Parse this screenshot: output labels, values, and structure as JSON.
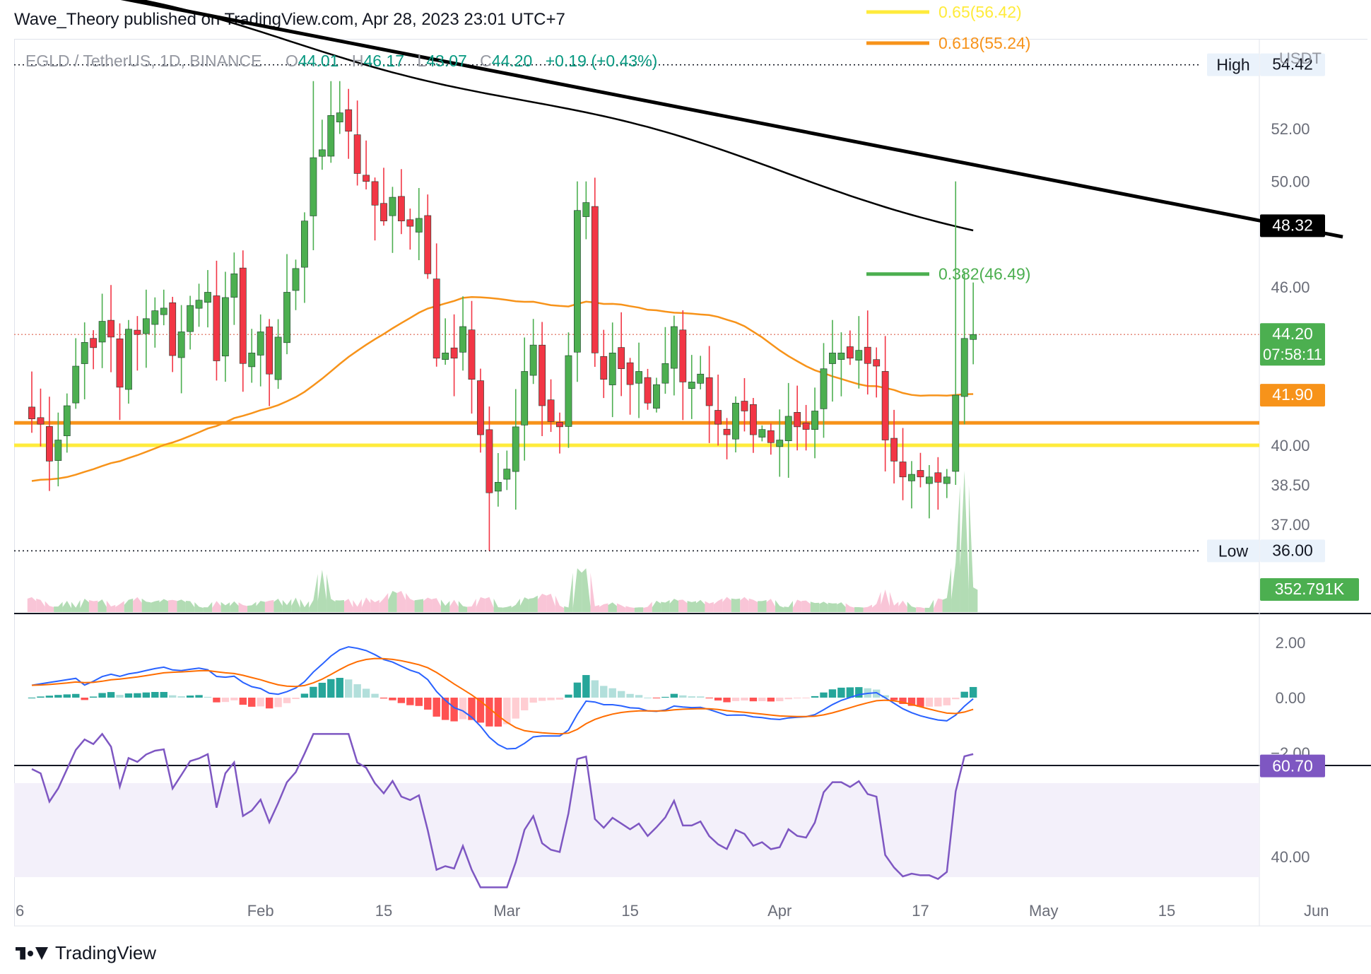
{
  "header": {
    "title": "Wave_Theory published on TradingView.com, Apr 28, 2023 23:01 UTC+7"
  },
  "footer": {
    "brand": "TradingView"
  },
  "legend": {
    "symbol": "EGLD / TetherUS, 1D, BINANCE",
    "o_label": "O",
    "o_value": "44.01",
    "h_label": "H",
    "h_value": "46.17",
    "l_label": "L",
    "l_value": "43.07",
    "c_label": "C",
    "c_value": "44.20",
    "change": "+0.19 (+0.43%)"
  },
  "colors": {
    "up": "#26a69a",
    "up_candle": "#4caf50",
    "down": "#f23645",
    "black": "#000000",
    "orange": "#f7931a",
    "yellow": "#ffeb3b",
    "macd": "#2962ff",
    "signal": "#ff6d00",
    "rsi": "#7e57c2",
    "rsi_band": "#f3f0fa"
  },
  "chart_data": [
    {
      "type": "candlestick",
      "currency_label": "USDT",
      "y_ticks": [
        "52.00",
        "50.00",
        "46.00",
        "40.00",
        "38.50",
        "37.00"
      ],
      "x_ticks": [
        "6",
        "Feb",
        "15",
        "Mar",
        "15",
        "Apr",
        "17",
        "May",
        "15",
        "Jun"
      ],
      "price_tags": [
        {
          "label": "High",
          "value": "54.42",
          "price": 54.42,
          "style": "light"
        },
        {
          "label": "",
          "value": "48.32",
          "price": 48.32,
          "style": "black"
        },
        {
          "label": "",
          "value": "44.20",
          "sub": "07:58:11",
          "price": 44.2,
          "style": "green"
        },
        {
          "label": "",
          "value": "41.90",
          "price": 41.9,
          "style": "orange"
        },
        {
          "label": "Low",
          "value": "36.00",
          "price": 36.0,
          "style": "light"
        },
        {
          "label": "",
          "value": "352.791K",
          "style": "green-volume"
        }
      ],
      "fib_levels": [
        {
          "label": "0.65(56.42)",
          "price": 56.42,
          "color": "#ffeb3b"
        },
        {
          "label": "0.618(55.24)",
          "price": 55.24,
          "color": "#f7931a"
        },
        {
          "label": "0.382(46.49)",
          "price": 46.49,
          "color": "#4caf50"
        }
      ],
      "support_lines": [
        {
          "price": 40.85,
          "color": "#f7931a"
        },
        {
          "price": 40.0,
          "color": "#ffeb3b"
        }
      ],
      "trendline": {
        "start": {
          "date": "2023-01-06",
          "price": 57.6
        },
        "end": {
          "date": "2023-06-04",
          "price": 47.9
        }
      },
      "closes": [
        41,
        40.8,
        39.4,
        40.2,
        41.5,
        43,
        43.9,
        43.7,
        44.7,
        44.1,
        42.2,
        44.4,
        44.2,
        44.8,
        45.1,
        45.2,
        43.4,
        44.3,
        45.3,
        45.5,
        45.8,
        43.2,
        45.6,
        46.5,
        43.1,
        43.5,
        44.3,
        42.7,
        44.1,
        45.8,
        46.7,
        48.5,
        50.9,
        51.2,
        52.5,
        52.6,
        51.9,
        50.3,
        50,
        49.1,
        48.5,
        49.4,
        48.5,
        48.3,
        48.6,
        46.5,
        43.3,
        43.5,
        43.3,
        44.5,
        42.5,
        40.4,
        38.2,
        38.6,
        39.1,
        40.7,
        42.8,
        43.8,
        41.5,
        40.9,
        40.7,
        43.4,
        48.9,
        49.2,
        43.5,
        42.5,
        43.5,
        42.9,
        42.3,
        42.8,
        41.6,
        42.3,
        43.1,
        44.5,
        42.4,
        42.4,
        42.7,
        41.5,
        40.8,
        40.4,
        41.6,
        41.3,
        40.4,
        40.6,
        40.1,
        40.2,
        41.1,
        40.7,
        40.6,
        41.3,
        42.9,
        43.5,
        43.5,
        43.3,
        43.6,
        43.1,
        43,
        40.2,
        39.4,
        38.8,
        38.9,
        38.8,
        38.8,
        38.6,
        38.8,
        41.9,
        44.05,
        44.2
      ]
    },
    {
      "type": "line",
      "indicator": "MACD",
      "y_ticks": [
        "2.00",
        "0.00",
        "−2.00"
      ]
    },
    {
      "type": "line",
      "indicator": "RSI",
      "y_ticks": [
        "40.00"
      ],
      "last_value": "60.70"
    }
  ]
}
